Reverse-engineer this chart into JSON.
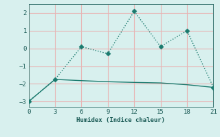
{
  "xlabel": "Humidex (Indice chaleur)",
  "x": [
    0,
    3,
    6,
    9,
    12,
    15,
    18,
    21
  ],
  "line1_y": [
    -3.0,
    -1.75,
    0.1,
    -0.3,
    2.1,
    0.1,
    1.0,
    -2.2
  ],
  "line2_y": [
    -3.0,
    -1.75,
    -1.82,
    -1.88,
    -1.92,
    -1.95,
    -2.05,
    -2.2
  ],
  "line_color": "#1a7a6e",
  "bg_color": "#d8f0ee",
  "grid_color": "#e8b4b4",
  "xlim": [
    0,
    21
  ],
  "ylim": [
    -3.3,
    2.5
  ],
  "xticks": [
    0,
    3,
    6,
    9,
    12,
    15,
    18,
    21
  ],
  "yticks": [
    -3,
    -2,
    -1,
    0,
    1,
    2
  ],
  "marker": "D",
  "markersize": 3.5
}
